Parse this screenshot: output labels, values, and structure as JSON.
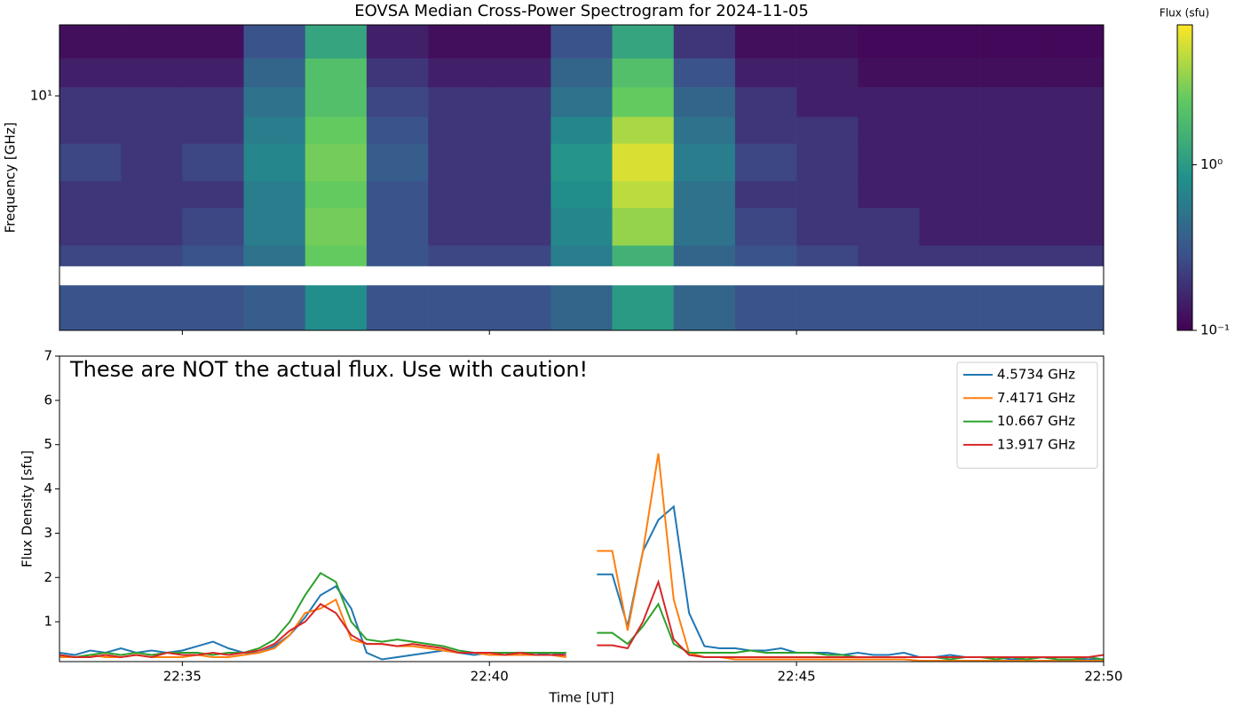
{
  "chart_data": [
    {
      "type": "heatmap",
      "title": "EOVSA Median Cross-Power Spectrogram for 2024-11-05",
      "ylabel": "Frequency [GHz]",
      "x_edges": [
        33,
        34,
        35,
        36,
        37,
        38,
        39,
        40,
        41,
        42,
        43,
        44,
        45,
        46,
        47,
        48,
        49,
        50
      ],
      "y_edges": [
        0.8,
        1.3,
        1.6,
        2,
        3,
        4,
        6,
        8,
        11,
        15,
        21.5
      ],
      "z": [
        [
          0.3,
          0.3,
          0.3,
          0.35,
          0.8,
          0.3,
          0.3,
          0.3,
          0.4,
          1.0,
          0.4,
          0.3,
          0.3,
          0.3,
          0.3,
          0.3,
          0.3
        ],
        [
          null,
          null,
          null,
          null,
          null,
          null,
          null,
          null,
          null,
          null,
          null,
          null,
          null,
          null,
          null,
          null,
          null
        ],
        [
          0.25,
          0.25,
          0.3,
          0.5,
          2.5,
          0.3,
          0.25,
          0.25,
          0.6,
          1.5,
          0.4,
          0.3,
          0.25,
          0.2,
          0.2,
          0.2,
          0.2
        ],
        [
          0.2,
          0.2,
          0.25,
          0.6,
          2.8,
          0.3,
          0.2,
          0.2,
          0.7,
          3.5,
          0.5,
          0.25,
          0.2,
          0.2,
          0.15,
          0.15,
          0.15
        ],
        [
          0.2,
          0.2,
          0.2,
          0.6,
          2.5,
          0.3,
          0.2,
          0.2,
          0.8,
          4.5,
          0.5,
          0.2,
          0.2,
          0.15,
          0.15,
          0.15,
          0.15
        ],
        [
          0.25,
          0.2,
          0.25,
          0.7,
          2.8,
          0.35,
          0.2,
          0.2,
          0.9,
          5.5,
          0.6,
          0.25,
          0.2,
          0.15,
          0.15,
          0.15,
          0.15
        ],
        [
          0.2,
          0.2,
          0.2,
          0.6,
          2.5,
          0.3,
          0.2,
          0.2,
          0.7,
          4.0,
          0.5,
          0.2,
          0.2,
          0.15,
          0.15,
          0.15,
          0.15
        ],
        [
          0.2,
          0.2,
          0.2,
          0.5,
          2.0,
          0.25,
          0.2,
          0.2,
          0.5,
          2.5,
          0.4,
          0.2,
          0.15,
          0.15,
          0.15,
          0.15,
          0.15
        ],
        [
          0.15,
          0.15,
          0.15,
          0.4,
          2.0,
          0.2,
          0.15,
          0.15,
          0.4,
          2.0,
          0.3,
          0.15,
          0.15,
          0.12,
          0.12,
          0.12,
          0.12
        ],
        [
          0.12,
          0.12,
          0.12,
          0.3,
          1.2,
          0.15,
          0.12,
          0.12,
          0.3,
          1.2,
          0.2,
          0.12,
          0.12,
          0.11,
          0.11,
          0.11,
          0.11
        ]
      ],
      "xlim": [
        33,
        50
      ],
      "xticks": [
        35,
        40,
        45,
        50
      ],
      "ylim": [
        0.8,
        21.5
      ],
      "yscale": "log",
      "yticks": [
        {
          "value": 10,
          "label": "10¹"
        }
      ],
      "colormap": "viridis",
      "colorbar": {
        "label": "Flux (sfu)",
        "lim": [
          0.1,
          7
        ],
        "scale": "log",
        "ticks": [
          {
            "value": 0.1,
            "label": "10⁻¹"
          },
          {
            "value": 1,
            "label": "10⁰"
          }
        ]
      }
    },
    {
      "type": "line",
      "annotation": "These are NOT the actual flux. Use with caution!",
      "xlabel": "Time [UT]",
      "ylabel": "Flux Density [sfu]",
      "x": [
        33,
        33.25,
        33.5,
        33.75,
        34,
        34.25,
        34.5,
        34.75,
        35,
        35.25,
        35.5,
        35.75,
        36,
        36.25,
        36.5,
        36.75,
        37,
        37.25,
        37.5,
        37.75,
        38,
        38.25,
        38.5,
        38.75,
        39,
        39.25,
        39.5,
        39.75,
        40,
        40.25,
        40.5,
        40.75,
        41,
        41.25,
        41.5,
        41.75,
        42,
        42.25,
        42.5,
        42.75,
        43,
        43.25,
        43.5,
        43.75,
        44,
        44.25,
        44.5,
        44.75,
        45,
        45.25,
        45.5,
        45.75,
        46,
        46.25,
        46.5,
        46.75,
        47,
        47.25,
        47.5,
        47.75,
        48,
        48.25,
        48.5,
        48.75,
        49,
        49.25,
        49.5,
        49.75,
        50
      ],
      "series": [
        {
          "name": "4.5734 GHz",
          "color": "#1f77b4",
          "values": [
            0.3,
            0.25,
            0.35,
            0.3,
            0.4,
            0.3,
            0.35,
            0.3,
            0.35,
            0.45,
            0.55,
            0.4,
            0.3,
            0.3,
            0.45,
            0.7,
            1.1,
            1.6,
            1.8,
            1.3,
            0.3,
            0.15,
            0.2,
            0.25,
            0.3,
            0.35,
            0.3,
            0.25,
            0.3,
            0.3,
            0.25,
            0.3,
            0.25,
            0.3,
            null,
            2.07,
            2.07,
            0.9,
            2.6,
            3.3,
            3.6,
            1.2,
            0.45,
            0.4,
            0.4,
            0.35,
            0.35,
            0.4,
            0.3,
            0.3,
            0.3,
            0.25,
            0.3,
            0.25,
            0.25,
            0.3,
            0.2,
            0.2,
            0.25,
            0.2,
            0.2,
            0.2,
            0.15,
            0.15,
            0.2,
            0.15,
            0.15,
            0.15,
            0.15
          ]
        },
        {
          "name": "7.4171 GHz",
          "color": "#ff7f0e",
          "values": [
            0.2,
            0.2,
            0.25,
            0.2,
            0.2,
            0.25,
            0.2,
            0.2,
            0.2,
            0.25,
            0.2,
            0.2,
            0.25,
            0.3,
            0.4,
            0.7,
            1.2,
            1.3,
            1.5,
            0.6,
            0.5,
            0.5,
            0.45,
            0.45,
            0.4,
            0.35,
            0.3,
            0.3,
            0.25,
            0.25,
            0.25,
            0.25,
            0.25,
            0.2,
            null,
            2.6,
            2.6,
            0.8,
            2.6,
            4.8,
            1.5,
            0.3,
            0.2,
            0.2,
            0.15,
            0.15,
            0.15,
            0.15,
            0.15,
            0.15,
            0.15,
            0.15,
            0.15,
            0.15,
            0.15,
            0.15,
            0.12,
            0.12,
            0.12,
            0.12,
            0.12,
            0.12,
            0.12,
            0.12,
            0.12,
            0.12,
            0.12,
            0.12,
            0.12
          ]
        },
        {
          "name": "10.667 GHz",
          "color": "#2ca02c",
          "values": [
            0.25,
            0.2,
            0.25,
            0.3,
            0.25,
            0.3,
            0.25,
            0.3,
            0.3,
            0.3,
            0.25,
            0.3,
            0.3,
            0.4,
            0.6,
            1.0,
            1.6,
            2.1,
            1.9,
            1.0,
            0.6,
            0.55,
            0.6,
            0.55,
            0.5,
            0.45,
            0.35,
            0.3,
            0.3,
            0.3,
            0.3,
            0.3,
            0.3,
            0.3,
            null,
            0.75,
            0.75,
            0.5,
            0.9,
            1.4,
            0.5,
            0.3,
            0.3,
            0.3,
            0.3,
            0.35,
            0.3,
            0.3,
            0.3,
            0.3,
            0.25,
            0.25,
            0.2,
            0.2,
            0.2,
            0.2,
            0.2,
            0.2,
            0.15,
            0.2,
            0.2,
            0.15,
            0.2,
            0.15,
            0.2,
            0.15,
            0.15,
            0.2,
            0.15
          ]
        },
        {
          "name": "13.917 GHz",
          "color": "#d62728",
          "values": [
            0.25,
            0.2,
            0.2,
            0.25,
            0.2,
            0.25,
            0.2,
            0.3,
            0.25,
            0.25,
            0.3,
            0.25,
            0.3,
            0.35,
            0.5,
            0.8,
            1.0,
            1.4,
            1.2,
            0.7,
            0.5,
            0.5,
            0.45,
            0.5,
            0.45,
            0.4,
            0.3,
            0.3,
            0.3,
            0.25,
            0.3,
            0.25,
            0.25,
            0.25,
            null,
            0.47,
            0.47,
            0.4,
            1.0,
            1.9,
            0.6,
            0.25,
            0.2,
            0.2,
            0.2,
            0.2,
            0.2,
            0.2,
            0.2,
            0.2,
            0.2,
            0.2,
            0.2,
            0.2,
            0.2,
            0.2,
            0.2,
            0.2,
            0.2,
            0.2,
            0.2,
            0.2,
            0.2,
            0.2,
            0.2,
            0.2,
            0.2,
            0.2,
            0.25
          ]
        }
      ],
      "xlim": [
        33,
        50
      ],
      "xticks": [
        {
          "value": 35,
          "label": "22:35"
        },
        {
          "value": 40,
          "label": "22:40"
        },
        {
          "value": 45,
          "label": "22:45"
        },
        {
          "value": 50,
          "label": "22:50"
        }
      ],
      "ylim": [
        0.1,
        7
      ],
      "yticks": [
        1,
        2,
        3,
        4,
        5,
        6,
        7
      ],
      "legend": "upper right"
    }
  ]
}
